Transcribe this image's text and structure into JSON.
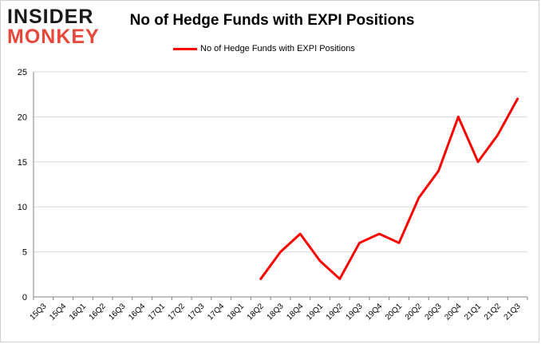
{
  "logo": {
    "line1": "INSIDER",
    "line2": "MONKEY"
  },
  "chart_data": {
    "type": "line",
    "title": "No of Hedge Funds with EXPI Positions",
    "xlabel": "",
    "ylabel": "",
    "categories": [
      "15Q3",
      "15Q4",
      "16Q1",
      "16Q2",
      "16Q3",
      "16Q4",
      "17Q1",
      "17Q2",
      "17Q3",
      "17Q4",
      "18Q1",
      "18Q2",
      "18Q3",
      "18Q4",
      "19Q1",
      "19Q2",
      "19Q3",
      "19Q4",
      "20Q1",
      "20Q2",
      "20Q3",
      "20Q4",
      "21Q1",
      "21Q2",
      "21Q3"
    ],
    "series": [
      {
        "name": "No of Hedge Funds with EXPI Positions",
        "values": [
          null,
          null,
          null,
          null,
          null,
          null,
          null,
          null,
          null,
          null,
          null,
          2,
          5,
          7,
          4,
          2,
          6,
          7,
          6,
          11,
          14,
          20,
          15,
          18,
          22
        ]
      }
    ],
    "ylim": [
      0,
      25
    ],
    "yticks": [
      0,
      5,
      10,
      15,
      20,
      25
    ],
    "grid": true,
    "legend": "top-center",
    "line_color": "#ff0000",
    "grid_color": "#d9d9d9"
  }
}
